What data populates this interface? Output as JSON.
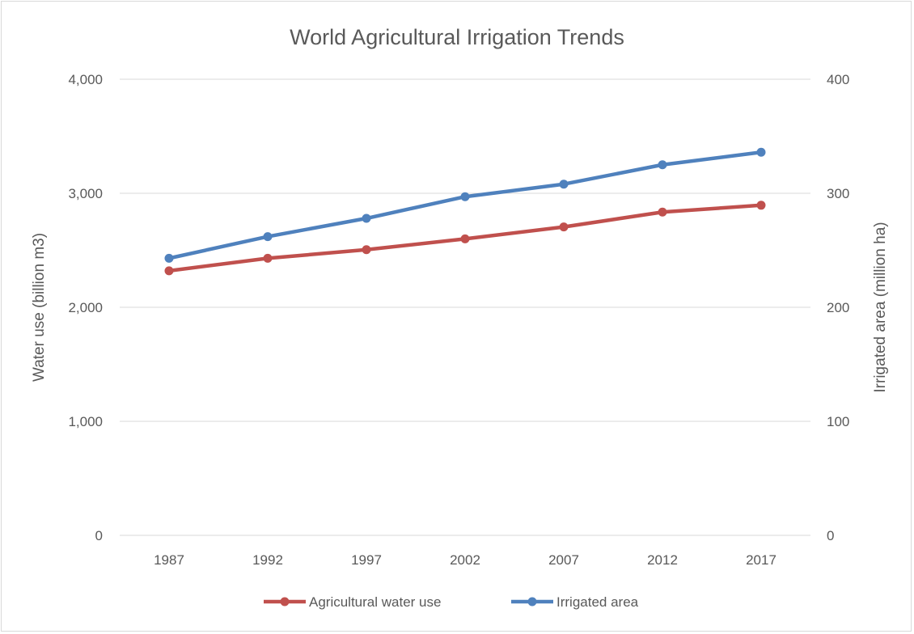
{
  "chart_data": {
    "type": "line",
    "title": "World Agricultural Irrigation Trends",
    "categories": [
      "1987",
      "1992",
      "1997",
      "2002",
      "2007",
      "2012",
      "2017"
    ],
    "y_left": {
      "label": "Water use (billion m3)",
      "lim": [
        0,
        4000
      ],
      "ticks": [
        "0",
        "1,000",
        "2,000",
        "3,000",
        "4,000"
      ],
      "tick_values": [
        0,
        1000,
        2000,
        3000,
        4000
      ]
    },
    "y_right": {
      "label": "Irrigated area (million ha)",
      "lim": [
        0,
        400
      ],
      "ticks": [
        "0",
        "100",
        "200",
        "300",
        "400"
      ],
      "tick_values": [
        0,
        100,
        200,
        300,
        400
      ]
    },
    "series": [
      {
        "name": "Agricultural water use",
        "axis": "left",
        "color": "#c0504d",
        "values": [
          2320,
          2430,
          2505,
          2600,
          2705,
          2835,
          2895
        ]
      },
      {
        "name": "Irrigated area",
        "axis": "right",
        "color": "#4f81bd",
        "values": [
          243,
          262,
          278,
          297,
          308,
          325,
          336
        ]
      }
    ],
    "grid": true,
    "legend_position": "bottom"
  }
}
